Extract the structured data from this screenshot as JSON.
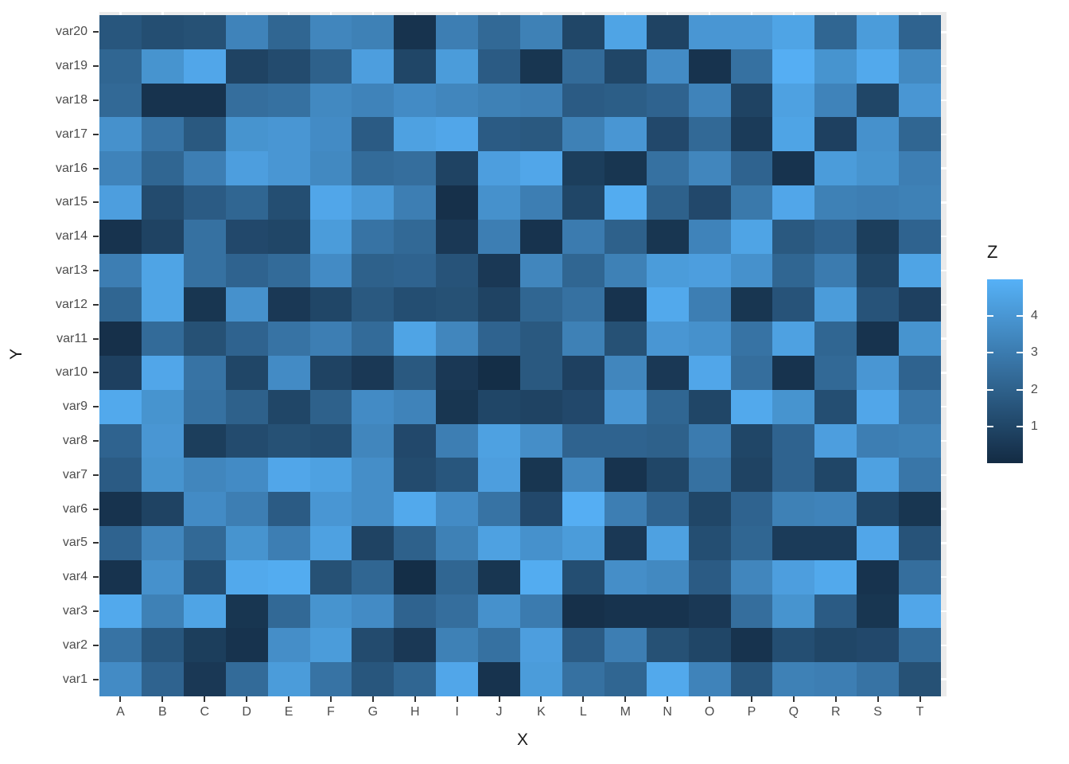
{
  "chart_data": {
    "type": "heatmap",
    "title": "",
    "xlabel": "X",
    "ylabel": "Y",
    "x_categories": [
      "A",
      "B",
      "C",
      "D",
      "E",
      "F",
      "G",
      "H",
      "I",
      "J",
      "K",
      "L",
      "M",
      "N",
      "O",
      "P",
      "Q",
      "R",
      "S",
      "T"
    ],
    "y_categories": [
      "var1",
      "var2",
      "var3",
      "var4",
      "var5",
      "var6",
      "var7",
      "var8",
      "var9",
      "var10",
      "var11",
      "var12",
      "var13",
      "var14",
      "var15",
      "var16",
      "var17",
      "var18",
      "var19",
      "var20"
    ],
    "values": [
      [
        3.6,
        2.1,
        0.5,
        2.4,
        4.2,
        2.7,
        1.6,
        2.2,
        4.6,
        0.3,
        4.2,
        2.6,
        2.2,
        4.7,
        3.3,
        1.6,
        3.2,
        3.1,
        2.7,
        1.4
      ],
      [
        2.7,
        1.6,
        0.7,
        0.3,
        3.7,
        4.2,
        1.2,
        0.5,
        3.2,
        2.6,
        4.3,
        1.8,
        3.1,
        1.4,
        1.0,
        0.3,
        1.3,
        1.0,
        1.1,
        2.4
      ],
      [
        4.7,
        3.2,
        4.5,
        0.4,
        2.3,
        3.9,
        3.6,
        2.1,
        2.5,
        3.8,
        3.0,
        0.2,
        0.3,
        0.3,
        0.5,
        2.5,
        3.9,
        1.8,
        0.4,
        4.6
      ],
      [
        0.3,
        3.8,
        1.3,
        4.7,
        4.8,
        1.4,
        2.2,
        0.1,
        2.2,
        0.4,
        4.8,
        1.3,
        3.7,
        3.5,
        1.8,
        3.4,
        4.3,
        4.7,
        0.3,
        2.5
      ],
      [
        2.1,
        3.4,
        2.3,
        3.9,
        3.1,
        4.4,
        0.9,
        2.0,
        3.2,
        4.4,
        3.8,
        4.2,
        0.5,
        4.4,
        1.3,
        2.2,
        0.6,
        0.6,
        4.6,
        1.5
      ],
      [
        0.3,
        0.9,
        3.6,
        3.1,
        1.8,
        4.0,
        3.7,
        4.7,
        3.6,
        2.7,
        1.1,
        4.9,
        3.1,
        2.1,
        1.0,
        2.1,
        3.2,
        3.3,
        1.0,
        0.4
      ],
      [
        1.8,
        3.9,
        3.4,
        3.6,
        4.6,
        4.4,
        3.7,
        1.2,
        1.6,
        4.3,
        0.4,
        3.4,
        0.3,
        1.0,
        2.6,
        0.9,
        2.1,
        1.0,
        4.4,
        2.8
      ],
      [
        2.1,
        4.0,
        0.7,
        1.2,
        1.4,
        1.3,
        3.4,
        1.1,
        3.1,
        4.4,
        3.7,
        2.1,
        2.1,
        2.0,
        3.0,
        1.0,
        2.1,
        4.3,
        3.1,
        3.2
      ],
      [
        4.7,
        3.9,
        2.6,
        2.0,
        1.0,
        2.0,
        3.6,
        3.3,
        0.4,
        1.0,
        0.9,
        1.1,
        4.0,
        2.2,
        1.0,
        4.7,
        3.9,
        1.3,
        4.6,
        2.8
      ],
      [
        0.8,
        4.6,
        2.7,
        1.0,
        3.6,
        0.9,
        0.5,
        1.7,
        0.5,
        0.1,
        1.7,
        0.8,
        3.4,
        0.5,
        4.6,
        2.5,
        0.3,
        2.3,
        4.0,
        2.1
      ],
      [
        0.2,
        2.4,
        1.4,
        2.1,
        2.7,
        3.1,
        2.4,
        4.5,
        3.4,
        2.1,
        1.7,
        3.2,
        1.4,
        4.0,
        3.8,
        2.7,
        4.4,
        2.2,
        0.3,
        3.9
      ],
      [
        2.2,
        4.5,
        0.4,
        3.8,
        0.5,
        1.0,
        1.7,
        1.3,
        1.4,
        0.9,
        2.2,
        2.6,
        0.3,
        4.7,
        3.1,
        0.4,
        1.5,
        4.2,
        1.5,
        0.8
      ],
      [
        3.1,
        4.5,
        2.6,
        2.1,
        2.4,
        3.6,
        2.0,
        2.1,
        1.5,
        0.5,
        3.4,
        2.2,
        3.2,
        4.2,
        4.3,
        3.8,
        2.2,
        3.0,
        1.0,
        4.5
      ],
      [
        0.3,
        0.9,
        2.6,
        1.1,
        1.0,
        4.2,
        2.7,
        2.3,
        0.5,
        3.1,
        0.3,
        3.0,
        2.0,
        0.4,
        3.3,
        4.5,
        1.7,
        2.1,
        0.7,
        2.1
      ],
      [
        4.3,
        1.2,
        1.8,
        2.2,
        1.3,
        4.6,
        4.1,
        3.1,
        0.2,
        3.8,
        3.1,
        1.0,
        4.8,
        2.0,
        1.1,
        2.9,
        4.6,
        3.2,
        3.1,
        3.2
      ],
      [
        3.3,
        2.2,
        3.1,
        4.3,
        4.0,
        3.5,
        2.4,
        2.5,
        0.9,
        4.3,
        4.6,
        0.7,
        0.4,
        2.6,
        3.4,
        2.1,
        0.3,
        4.2,
        3.9,
        3.1
      ],
      [
        3.8,
        2.7,
        1.7,
        3.9,
        4.0,
        3.6,
        1.8,
        4.4,
        4.6,
        1.8,
        1.7,
        3.2,
        4.0,
        1.1,
        2.3,
        0.6,
        4.5,
        0.8,
        3.8,
        2.2
      ],
      [
        2.3,
        0.3,
        0.3,
        2.5,
        2.6,
        3.5,
        3.3,
        3.6,
        3.4,
        3.2,
        3.1,
        1.8,
        1.9,
        2.1,
        3.3,
        0.9,
        4.4,
        3.3,
        1.0,
        4.0
      ],
      [
        2.2,
        3.9,
        4.6,
        0.9,
        1.2,
        2.0,
        4.3,
        1.0,
        4.2,
        1.8,
        0.4,
        2.4,
        1.0,
        3.6,
        0.3,
        2.6,
        4.9,
        3.9,
        4.7,
        3.5
      ],
      [
        1.6,
        1.3,
        1.4,
        3.3,
        2.2,
        3.4,
        3.2,
        0.3,
        3.1,
        2.3,
        3.2,
        1.0,
        4.5,
        0.9,
        4.0,
        4.0,
        4.5,
        2.2,
        4.2,
        2.1
      ]
    ],
    "scale": {
      "name": "Z",
      "min": 0,
      "max": 5,
      "ticks": [
        1,
        2,
        3,
        4
      ],
      "low_color": "#132B43",
      "high_color": "#56B1F7"
    },
    "panel_background": "#EBEBEB",
    "gridline_color": "#FFFFFF",
    "legend_position": "right",
    "grid": false
  },
  "axis_style": {
    "tick_label_color": "#4D4D4D",
    "title_color": "#1A1A1A",
    "tick_mark_color": "#333333"
  }
}
